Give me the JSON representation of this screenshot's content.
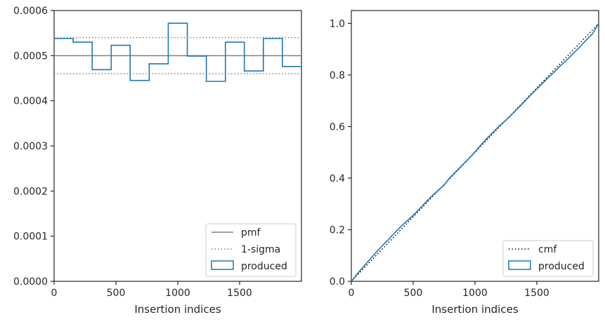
{
  "colors": {
    "produced": "#1f77b4",
    "pmf": "#808080",
    "sigma": "#808080",
    "cmf": "#000000",
    "frame": "#262626"
  },
  "chart_data": [
    {
      "type": "line",
      "subtype": "step-histogram",
      "xlabel": "Insertion indices",
      "ylabel": "",
      "xlim": [
        0,
        2000
      ],
      "ylim": [
        0,
        0.0006
      ],
      "x_ticks": [
        0,
        500,
        1000,
        1500
      ],
      "x_tick_labels": [
        "0",
        "500",
        "1000",
        "1500"
      ],
      "y_ticks": [
        0,
        0.0001,
        0.0002,
        0.0003,
        0.0004,
        0.0005,
        0.0006
      ],
      "y_tick_labels": [
        "0.0000",
        "0.0001",
        "0.0002",
        "0.0003",
        "0.0004",
        "0.0005",
        "0.0006"
      ],
      "legend": {
        "position": "lower-right",
        "entries": [
          "pmf",
          "1-sigma",
          "produced"
        ]
      },
      "pmf": 0.0005,
      "sigma_band": [
        0.00046,
        0.00054
      ],
      "bin_edges": [
        0,
        154,
        308,
        462,
        615,
        769,
        923,
        1077,
        1231,
        1385,
        1538,
        1692,
        1846,
        2000
      ],
      "produced": [
        0.000538,
        0.00053,
        0.000469,
        0.000523,
        0.000445,
        0.000482,
        0.000572,
        0.000499,
        0.000443,
        0.00053,
        0.000466,
        0.000538,
        0.000476
      ]
    },
    {
      "type": "line",
      "xlabel": "Insertion indices",
      "ylabel": "",
      "xlim": [
        0,
        2000
      ],
      "ylim": [
        0,
        1.05
      ],
      "x_ticks": [
        0,
        500,
        1000,
        1500
      ],
      "x_tick_labels": [
        "0",
        "500",
        "1000",
        "1500"
      ],
      "y_ticks": [
        0,
        0.2,
        0.4,
        0.6,
        0.8,
        1.0
      ],
      "y_tick_labels": [
        "0.0",
        "0.2",
        "0.4",
        "0.6",
        "0.8",
        "1.0"
      ],
      "legend": {
        "position": "lower-right",
        "entries": [
          "cmf",
          "produced"
        ]
      },
      "cmf": {
        "x": [
          0,
          2000
        ],
        "y": [
          0,
          1.0
        ]
      },
      "produced": {
        "x": [
          0,
          50,
          100,
          150,
          200,
          250,
          300,
          350,
          400,
          450,
          500,
          550,
          600,
          650,
          700,
          750,
          800,
          850,
          900,
          950,
          1000,
          1050,
          1100,
          1150,
          1200,
          1250,
          1300,
          1350,
          1400,
          1450,
          1500,
          1550,
          1600,
          1650,
          1700,
          1750,
          1800,
          1850,
          1900,
          1950,
          2000
        ],
        "y": [
          0,
          0.03,
          0.058,
          0.085,
          0.112,
          0.138,
          0.162,
          0.188,
          0.212,
          0.234,
          0.256,
          0.28,
          0.306,
          0.33,
          0.352,
          0.373,
          0.404,
          0.428,
          0.452,
          0.476,
          0.502,
          0.53,
          0.556,
          0.58,
          0.604,
          0.625,
          0.648,
          0.672,
          0.697,
          0.722,
          0.746,
          0.77,
          0.793,
          0.816,
          0.84,
          0.862,
          0.886,
          0.91,
          0.936,
          0.96,
          1.0
        ]
      }
    }
  ]
}
